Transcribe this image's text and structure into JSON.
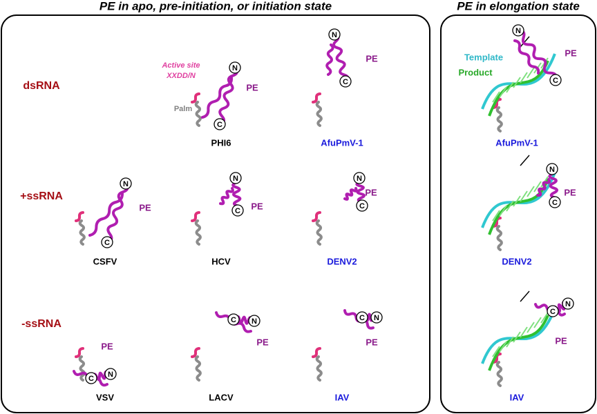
{
  "panels": [
    {
      "title": "PE in apo, pre-initiation, or initiation state",
      "rows": [
        {
          "label": "dsRNA",
          "structures": [
            {
              "name": "PHI6",
              "name_color": "#000000",
              "pe": "PE",
              "n": "N",
              "c": "C",
              "active_site": [
                "Active site",
                "XXDD/N"
              ],
              "palm_label": "Palm"
            },
            {
              "name": "AfuPmV-1",
              "name_color": "#1a1adc",
              "pe": "PE",
              "n": "N",
              "c": "C"
            }
          ]
        },
        {
          "label": "+ssRNA",
          "structures": [
            {
              "name": "CSFV",
              "name_color": "#000000",
              "pe": "PE",
              "n": "N",
              "c": "C"
            },
            {
              "name": "HCV",
              "name_color": "#000000",
              "pe": "PE",
              "n": "N",
              "c": "C"
            },
            {
              "name": "DENV2",
              "name_color": "#1a1adc",
              "pe": "PE",
              "n": "N",
              "c": "C"
            }
          ]
        },
        {
          "label": "-ssRNA",
          "structures": [
            {
              "name": "VSV",
              "name_color": "#000000",
              "pe": "PE",
              "n": "N",
              "c": "C"
            },
            {
              "name": "LACV",
              "name_color": "#000000",
              "pe": "PE",
              "n": "N",
              "c": "C"
            },
            {
              "name": "IAV",
              "name_color": "#1a1adc",
              "pe": "PE",
              "n": "N",
              "c": "C"
            }
          ]
        }
      ]
    },
    {
      "title": "PE in elongation state",
      "structures": [
        {
          "name": "AfuPmV-1",
          "name_color": "#1a1adc",
          "pe": "PE",
          "n": "N",
          "c": "C",
          "template": "Template",
          "product": "Product"
        },
        {
          "name": "DENV2",
          "name_color": "#1a1adc",
          "pe": "PE",
          "n": "N",
          "c": "C"
        },
        {
          "name": "IAV",
          "name_color": "#1a1adc",
          "pe": "PE",
          "n": "N",
          "c": "C"
        }
      ]
    }
  ]
}
